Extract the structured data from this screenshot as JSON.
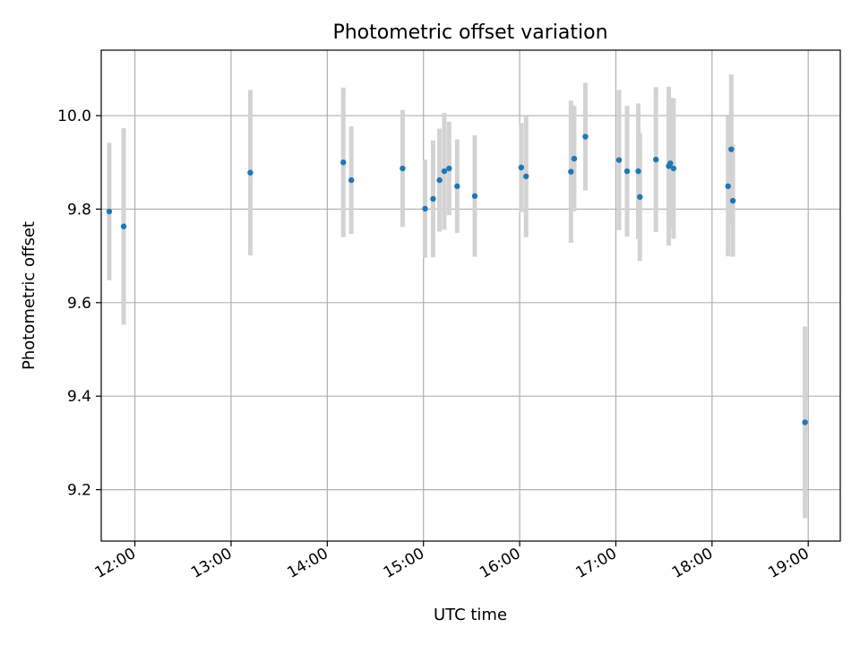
{
  "chart_data": {
    "type": "scatter",
    "title": "Photometric offset variation",
    "xlabel": "UTC time",
    "ylabel": "Photometric offset",
    "x_tick_labels": [
      "12:00",
      "13:00",
      "14:00",
      "15:00",
      "16:00",
      "17:00",
      "18:00",
      "19:00"
    ],
    "y_tick_labels": [
      "9.2",
      "9.4",
      "9.6",
      "9.8",
      "10.0"
    ],
    "x_ticks": [
      720,
      780,
      840,
      900,
      960,
      1020,
      1080,
      1140
    ],
    "y_ticks": [
      9.2,
      9.4,
      9.6,
      9.8,
      10.0
    ],
    "xlim": [
      "11:39",
      "19:20"
    ],
    "ylim": [
      9.09,
      10.14
    ],
    "grid": true,
    "colors": {
      "points": "#1f77b4",
      "errorbars": "#d3d3d3",
      "grid": "#b0b0b0"
    },
    "series": [
      {
        "x": [
          "11:44",
          "11:53",
          "13:12",
          "14:10",
          "14:15",
          "14:47",
          "15:01",
          "15:06",
          "15:10",
          "15:13",
          "15:16",
          "15:21",
          "15:32",
          "16:01",
          "16:04",
          "16:32",
          "16:34",
          "16:41",
          "17:02",
          "17:07",
          "17:14",
          "17:15",
          "17:25",
          "17:33",
          "17:34",
          "17:36",
          "18:10",
          "18:12",
          "18:13",
          "18:58"
        ],
        "y": [
          9.795,
          9.763,
          9.878,
          9.9,
          9.862,
          9.887,
          9.801,
          9.822,
          9.862,
          9.881,
          9.887,
          9.849,
          9.828,
          9.889,
          9.87,
          9.88,
          9.908,
          9.955,
          9.905,
          9.881,
          9.881,
          9.826,
          9.906,
          9.892,
          9.898,
          9.887,
          9.849,
          9.928,
          9.818,
          9.344
        ],
        "yerr": [
          0.147,
          0.21,
          0.177,
          0.16,
          0.115,
          0.125,
          0.105,
          0.125,
          0.11,
          0.125,
          0.1,
          0.1,
          0.13,
          0.095,
          0.13,
          0.152,
          0.113,
          0.115,
          0.15,
          0.14,
          0.145,
          0.137,
          0.155,
          0.17,
          0.14,
          0.15,
          0.15,
          0.16,
          0.12,
          0.205
        ]
      }
    ]
  }
}
